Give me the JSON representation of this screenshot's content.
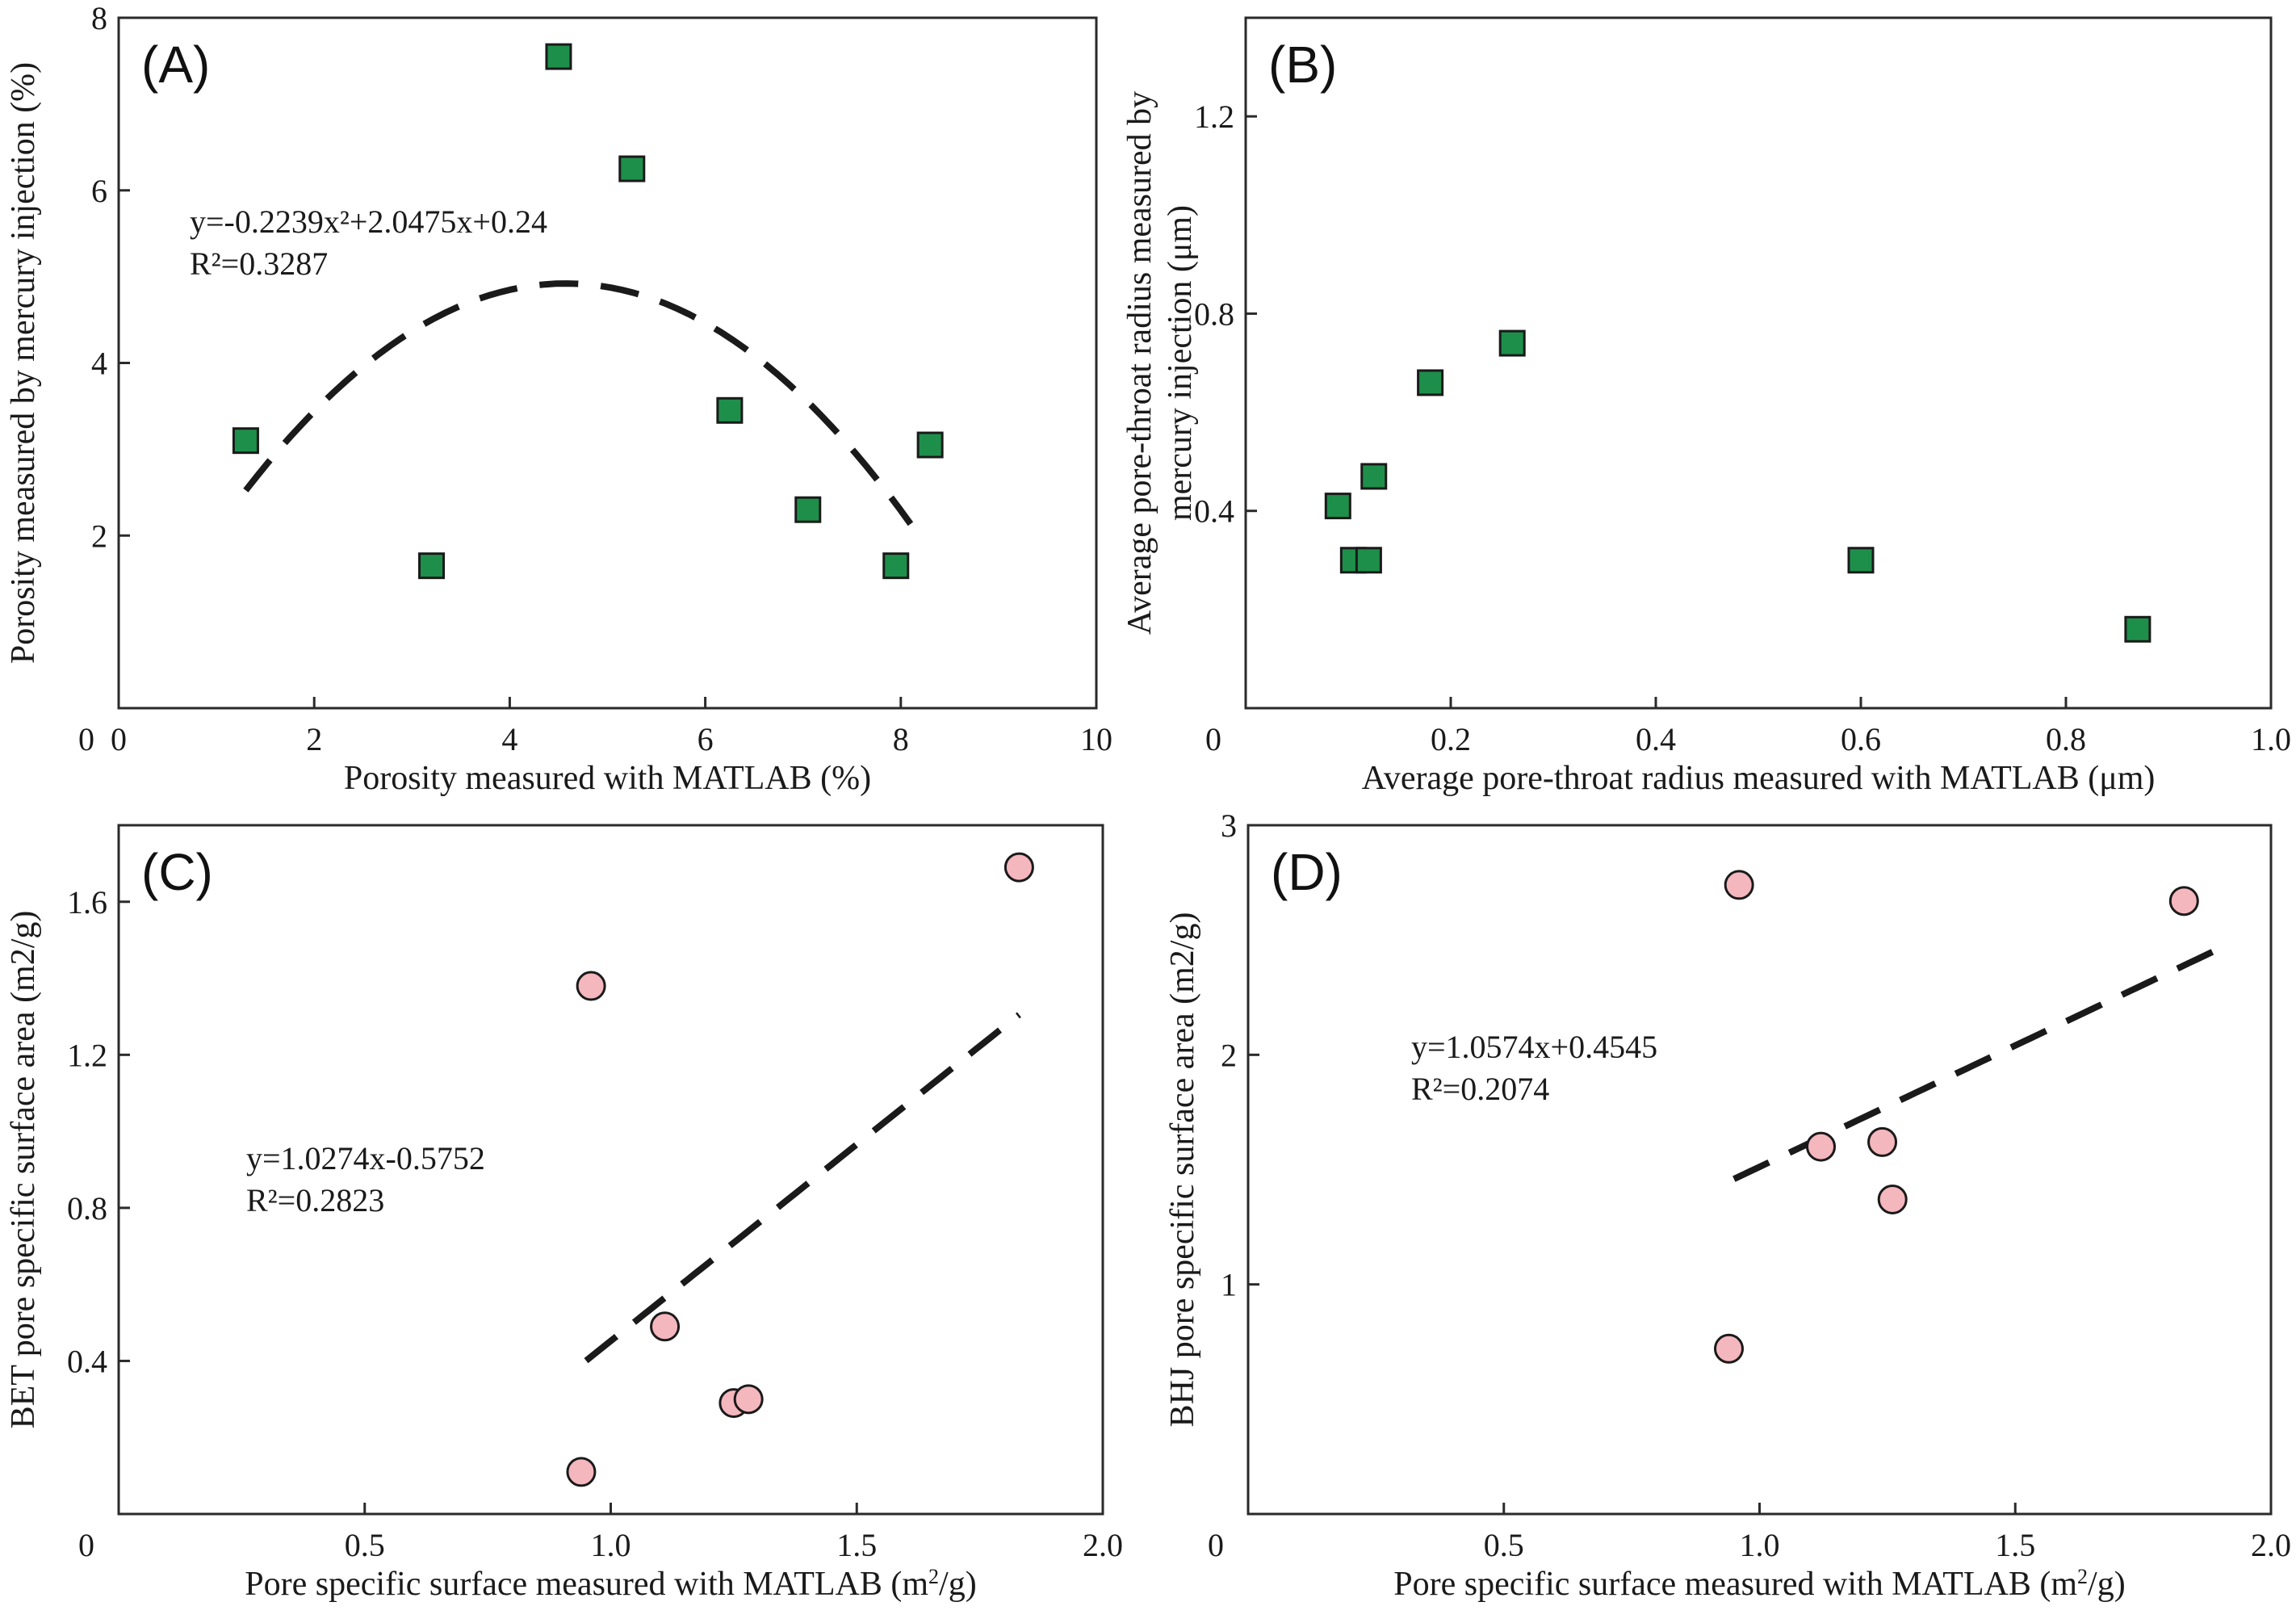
{
  "colors": {
    "square_marker": "#1e8f4a",
    "circle_marker": "#f4b7bd",
    "marker_edge": "#1a1a1a",
    "fit_line": "#1a1a1a"
  },
  "chart_data": [
    {
      "id": "A",
      "panel_label": "(A)",
      "type": "scatter",
      "marker": "square",
      "xlabel": "Porosity measured with MATLAB (%)",
      "ylabel": "Porosity measured by mercury injection (%)",
      "xlim": [
        0,
        10
      ],
      "ylim": [
        0,
        8
      ],
      "xticks": [
        0,
        2,
        4,
        6,
        8,
        10
      ],
      "xtick_labels": [
        "0",
        "2",
        "4",
        "6",
        "8",
        "10"
      ],
      "yticks": [
        2,
        4,
        6,
        8
      ],
      "ytick_labels": [
        "2",
        "4",
        "6",
        "8"
      ],
      "origin_label": "0",
      "points": [
        {
          "x": 1.3,
          "y": 3.1
        },
        {
          "x": 3.2,
          "y": 1.65
        },
        {
          "x": 4.5,
          "y": 7.55
        },
        {
          "x": 5.25,
          "y": 6.25
        },
        {
          "x": 6.25,
          "y": 3.45
        },
        {
          "x": 7.05,
          "y": 2.3
        },
        {
          "x": 7.95,
          "y": 1.65
        },
        {
          "x": 8.3,
          "y": 3.05
        }
      ],
      "fit": {
        "kind": "poly2",
        "coef": [
          -0.2239,
          2.0475,
          0.24
        ],
        "x_range": [
          1.3,
          8.1
        ]
      },
      "equation_line1": "y=-0.2239x²+2.0475x+0.24",
      "equation_line2": "R²=0.3287"
    },
    {
      "id": "B",
      "panel_label": "(B)",
      "type": "scatter",
      "marker": "square",
      "xlabel": "Average pore-throat radius measured with MATLAB (μm)",
      "ylabel": [
        "Average pore-throat radius measured by",
        "mercury injection (μm)"
      ],
      "xlim": [
        0,
        1.0
      ],
      "ylim": [
        0,
        1.4
      ],
      "xticks": [
        0.2,
        0.4,
        0.6,
        0.8,
        1.0
      ],
      "xtick_labels": [
        "0.2",
        "0.4",
        "0.6",
        "0.8",
        "1.0"
      ],
      "yticks": [
        0.4,
        0.8,
        1.2
      ],
      "ytick_labels": [
        "0.4",
        "0.8",
        "1.2"
      ],
      "origin_label": "0",
      "points": [
        {
          "x": 0.09,
          "y": 0.41
        },
        {
          "x": 0.105,
          "y": 0.3
        },
        {
          "x": 0.12,
          "y": 0.3
        },
        {
          "x": 0.125,
          "y": 0.47
        },
        {
          "x": 0.18,
          "y": 0.66
        },
        {
          "x": 0.26,
          "y": 0.74
        },
        {
          "x": 0.6,
          "y": 0.3
        },
        {
          "x": 0.87,
          "y": 0.16
        }
      ]
    },
    {
      "id": "C",
      "panel_label": "(C)",
      "type": "scatter",
      "marker": "circle",
      "xlabel_main": "Pore specific surface measured with MATLAB (m",
      "xlabel_sup": "2",
      "xlabel_end": "/g)",
      "ylabel": "BET pore specific surface area (m2/g)",
      "xlim": [
        0,
        2.0
      ],
      "ylim": [
        0,
        1.8
      ],
      "xticks": [
        0.5,
        1.0,
        1.5,
        2.0
      ],
      "xtick_labels": [
        "0.5",
        "1.0",
        "1.5",
        "2.0"
      ],
      "yticks": [
        0.4,
        0.8,
        1.2,
        1.6
      ],
      "ytick_labels": [
        "0.4",
        "0.8",
        "1.2",
        "1.6"
      ],
      "origin_label": "0",
      "points": [
        {
          "x": 0.94,
          "y": 0.11
        },
        {
          "x": 0.96,
          "y": 1.38
        },
        {
          "x": 1.11,
          "y": 0.49
        },
        {
          "x": 1.25,
          "y": 0.29
        },
        {
          "x": 1.28,
          "y": 0.3
        },
        {
          "x": 1.83,
          "y": 1.69
        }
      ],
      "fit": {
        "kind": "linear",
        "coef": [
          1.0274,
          -0.5752
        ],
        "x_range": [
          0.95,
          1.83
        ]
      },
      "equation_line1": "y=1.0274x-0.5752",
      "equation_line2": "R²=0.2823"
    },
    {
      "id": "D",
      "panel_label": "(D)",
      "type": "scatter",
      "marker": "circle",
      "xlabel_main": "Pore specific surface measured with MATLAB (m",
      "xlabel_sup": "2",
      "xlabel_end": "/g)",
      "ylabel": "BHJ pore specific surface area (m2/g)",
      "xlim": [
        0,
        2.0
      ],
      "ylim": [
        0,
        3
      ],
      "xticks": [
        0.5,
        1.0,
        1.5,
        2.0
      ],
      "xtick_labels": [
        "0.5",
        "1.0",
        "1.5",
        "2.0"
      ],
      "yticks": [
        1,
        2,
        3
      ],
      "ytick_labels": [
        "1",
        "2",
        "3"
      ],
      "origin_label": "0",
      "points": [
        {
          "x": 0.94,
          "y": 0.72
        },
        {
          "x": 0.96,
          "y": 2.74
        },
        {
          "x": 1.12,
          "y": 1.6
        },
        {
          "x": 1.24,
          "y": 1.62
        },
        {
          "x": 1.26,
          "y": 1.37
        },
        {
          "x": 1.83,
          "y": 2.67
        }
      ],
      "fit": {
        "kind": "linear",
        "coef": [
          1.0574,
          0.4545
        ],
        "x_range": [
          0.95,
          1.92
        ]
      },
      "equation_line1": "y=1.0574x+0.4545",
      "equation_line2": "R²=0.2074"
    }
  ]
}
